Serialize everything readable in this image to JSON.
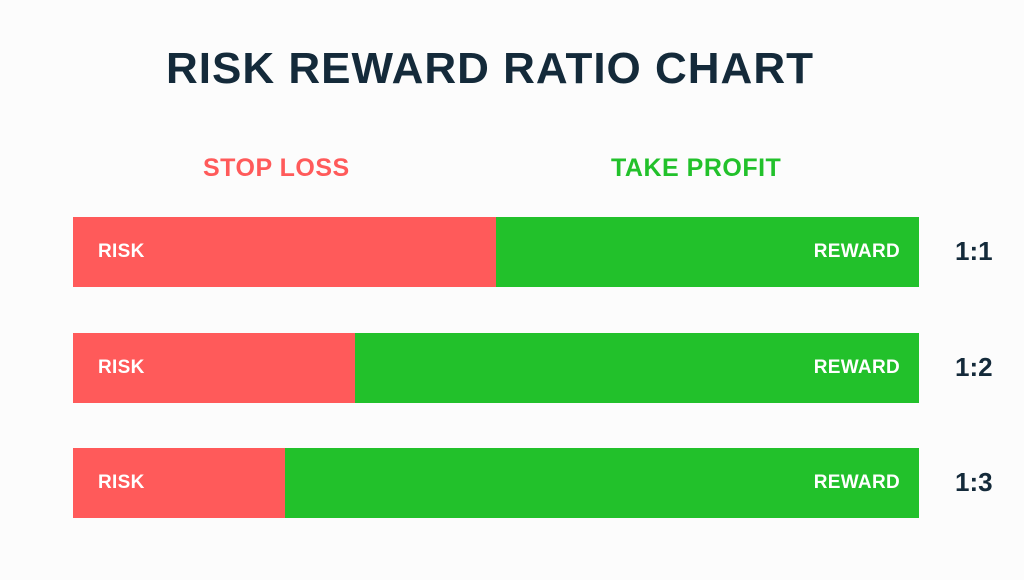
{
  "title": "RISK REWARD RATIO CHART",
  "headers": {
    "stop_loss": "STOP LOSS",
    "take_profit": "TAKE PROFIT"
  },
  "colors": {
    "risk": "#ff5a5a",
    "reward": "#22c12b",
    "title": "#142a3a"
  },
  "rows": [
    {
      "risk_label": "RISK",
      "reward_label": "REWARD",
      "ratio": "1:1",
      "risk": 1,
      "reward": 1
    },
    {
      "risk_label": "RISK",
      "reward_label": "REWARD",
      "ratio": "1:2",
      "risk": 1,
      "reward": 2
    },
    {
      "risk_label": "RISK",
      "reward_label": "REWARD",
      "ratio": "1:3",
      "risk": 1,
      "reward": 3
    }
  ]
}
